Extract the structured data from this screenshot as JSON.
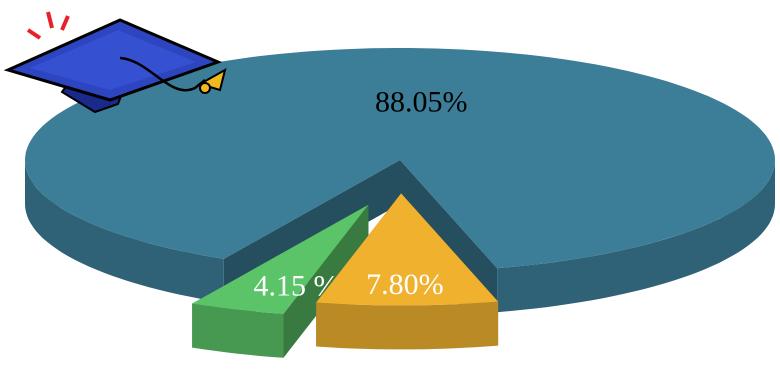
{
  "chart_data": {
    "type": "pie3d",
    "values": [
      88.05,
      4.15,
      7.8
    ],
    "value_labels": [
      "88.05%",
      "4.15 %",
      "7.80%"
    ],
    "colors": [
      "#3c7d98",
      "#5bc468",
      "#efb12e"
    ]
  }
}
